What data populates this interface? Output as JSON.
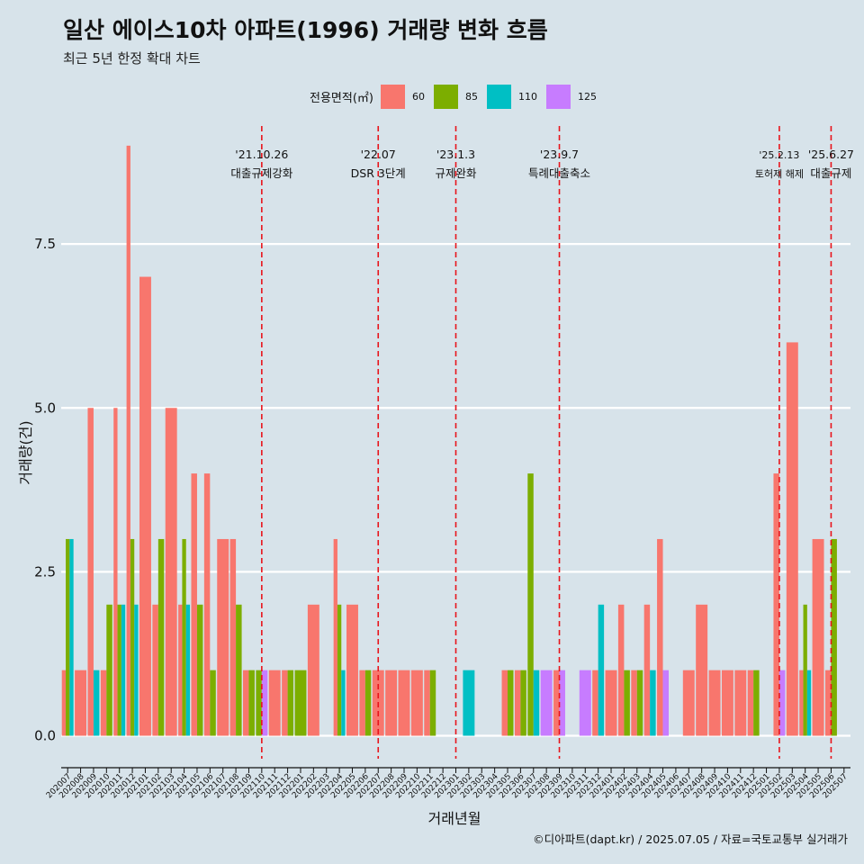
{
  "title": "일산 에이스10차 아파트(1996) 거래량 변화 흐름",
  "subtitle": "최근 5년 한정 확대 차트",
  "caption": "©디아파트(dapt.kr) / 2025.07.05 / 자료=국토교통부 실거래가",
  "legend": {
    "title": "전용면적(㎡)",
    "items": [
      {
        "label": "60",
        "color": "#f8766d"
      },
      {
        "label": "85",
        "color": "#7cae00"
      },
      {
        "label": "110",
        "color": "#00bfc4"
      },
      {
        "label": "125",
        "color": "#c77cff"
      }
    ]
  },
  "chart_data": {
    "type": "bar",
    "xlabel": "거래년월",
    "ylabel": "거래량(건)",
    "ylim": [
      -0.35,
      9.3
    ],
    "y_ticks": [
      "0.0",
      "2.5",
      "5.0",
      "7.5"
    ],
    "y_tick_values": [
      0,
      2.5,
      5,
      7.5
    ],
    "grid": true,
    "legend_position": "top",
    "categories": [
      "202007",
      "202008",
      "202009",
      "202010",
      "202011",
      "202012",
      "202101",
      "202102",
      "202103",
      "202104",
      "202105",
      "202106",
      "202107",
      "202108",
      "202109",
      "202110",
      "202111",
      "202112",
      "202201",
      "202202",
      "202203",
      "202204",
      "202205",
      "202206",
      "202207",
      "202208",
      "202209",
      "202210",
      "202211",
      "202212",
      "202301",
      "202302",
      "202303",
      "202304",
      "202305",
      "202306",
      "202307",
      "202308",
      "202309",
      "202310",
      "202311",
      "202312",
      "202401",
      "202402",
      "202403",
      "202404",
      "202405",
      "202406",
      "202407",
      "202408",
      "202409",
      "202410",
      "202411",
      "202412",
      "202501",
      "202502",
      "202503",
      "202504",
      "202505",
      "202506",
      "202507"
    ],
    "series_colors": {
      "60": "#f8766d",
      "85": "#7cae00",
      "110": "#00bfc4",
      "125": "#c77cff"
    },
    "bars": [
      {
        "month": "202007",
        "values": [
          {
            "s": "60",
            "v": 1
          },
          {
            "s": "85",
            "v": 3
          },
          {
            "s": "110",
            "v": 3
          }
        ]
      },
      {
        "month": "202008",
        "values": [
          {
            "s": "60",
            "v": 1
          }
        ]
      },
      {
        "month": "202009",
        "values": [
          {
            "s": "60",
            "v": 5
          },
          {
            "s": "110",
            "v": 1
          }
        ]
      },
      {
        "month": "202010",
        "values": [
          {
            "s": "60",
            "v": 1
          },
          {
            "s": "85",
            "v": 2
          }
        ]
      },
      {
        "month": "202011",
        "values": [
          {
            "s": "60",
            "v": 5
          },
          {
            "s": "85",
            "v": 2
          },
          {
            "s": "110",
            "v": 2
          }
        ]
      },
      {
        "month": "202012",
        "values": [
          {
            "s": "60",
            "v": 9
          },
          {
            "s": "85",
            "v": 3
          },
          {
            "s": "110",
            "v": 2
          }
        ]
      },
      {
        "month": "202101",
        "values": [
          {
            "s": "60",
            "v": 7
          }
        ]
      },
      {
        "month": "202102",
        "values": [
          {
            "s": "60",
            "v": 2
          },
          {
            "s": "85",
            "v": 3
          }
        ]
      },
      {
        "month": "202103",
        "values": [
          {
            "s": "60",
            "v": 5
          }
        ]
      },
      {
        "month": "202104",
        "values": [
          {
            "s": "60",
            "v": 2
          },
          {
            "s": "85",
            "v": 3
          },
          {
            "s": "110",
            "v": 2
          }
        ]
      },
      {
        "month": "202105",
        "values": [
          {
            "s": "60",
            "v": 4
          },
          {
            "s": "85",
            "v": 2
          }
        ]
      },
      {
        "month": "202106",
        "values": [
          {
            "s": "60",
            "v": 4
          },
          {
            "s": "85",
            "v": 1
          }
        ]
      },
      {
        "month": "202107",
        "values": [
          {
            "s": "60",
            "v": 3
          }
        ]
      },
      {
        "month": "202108",
        "values": [
          {
            "s": "60",
            "v": 3
          },
          {
            "s": "85",
            "v": 2
          }
        ]
      },
      {
        "month": "202109",
        "values": [
          {
            "s": "60",
            "v": 1
          },
          {
            "s": "85",
            "v": 1
          }
        ]
      },
      {
        "month": "202110",
        "values": [
          {
            "s": "85",
            "v": 1
          },
          {
            "s": "125",
            "v": 1
          }
        ]
      },
      {
        "month": "202111",
        "values": [
          {
            "s": "60",
            "v": 1
          }
        ]
      },
      {
        "month": "202112",
        "values": [
          {
            "s": "60",
            "v": 1
          },
          {
            "s": "85",
            "v": 1
          }
        ]
      },
      {
        "month": "202201",
        "values": [
          {
            "s": "85",
            "v": 1
          }
        ]
      },
      {
        "month": "202202",
        "values": [
          {
            "s": "60",
            "v": 2
          }
        ]
      },
      {
        "month": "202203",
        "values": []
      },
      {
        "month": "202204",
        "values": [
          {
            "s": "60",
            "v": 3
          },
          {
            "s": "85",
            "v": 2
          },
          {
            "s": "110",
            "v": 1
          }
        ]
      },
      {
        "month": "202205",
        "values": [
          {
            "s": "60",
            "v": 2
          }
        ]
      },
      {
        "month": "202206",
        "values": [
          {
            "s": "60",
            "v": 1
          },
          {
            "s": "85",
            "v": 1
          }
        ]
      },
      {
        "month": "202207",
        "values": [
          {
            "s": "60",
            "v": 1
          }
        ]
      },
      {
        "month": "202208",
        "values": [
          {
            "s": "60",
            "v": 1
          }
        ]
      },
      {
        "month": "202209",
        "values": [
          {
            "s": "60",
            "v": 1
          }
        ]
      },
      {
        "month": "202210",
        "values": [
          {
            "s": "60",
            "v": 1
          }
        ]
      },
      {
        "month": "202211",
        "values": [
          {
            "s": "60",
            "v": 1
          },
          {
            "s": "85",
            "v": 1
          }
        ]
      },
      {
        "month": "202212",
        "values": []
      },
      {
        "month": "202301",
        "values": []
      },
      {
        "month": "202302",
        "values": [
          {
            "s": "110",
            "v": 1
          }
        ]
      },
      {
        "month": "202303",
        "values": []
      },
      {
        "month": "202304",
        "values": []
      },
      {
        "month": "202305",
        "values": [
          {
            "s": "60",
            "v": 1
          },
          {
            "s": "85",
            "v": 1
          }
        ]
      },
      {
        "month": "202306",
        "values": [
          {
            "s": "60",
            "v": 1
          },
          {
            "s": "85",
            "v": 1
          }
        ]
      },
      {
        "month": "202307",
        "values": [
          {
            "s": "85",
            "v": 4
          },
          {
            "s": "110",
            "v": 1
          }
        ]
      },
      {
        "month": "202308",
        "values": [
          {
            "s": "125",
            "v": 1
          }
        ]
      },
      {
        "month": "202309",
        "values": [
          {
            "s": "60",
            "v": 1
          },
          {
            "s": "125",
            "v": 1
          }
        ]
      },
      {
        "month": "202310",
        "values": []
      },
      {
        "month": "202311",
        "values": [
          {
            "s": "125",
            "v": 1
          }
        ]
      },
      {
        "month": "202312",
        "values": [
          {
            "s": "60",
            "v": 1
          },
          {
            "s": "110",
            "v": 2
          }
        ]
      },
      {
        "month": "202401",
        "values": [
          {
            "s": "60",
            "v": 1
          }
        ]
      },
      {
        "month": "202402",
        "values": [
          {
            "s": "60",
            "v": 2
          },
          {
            "s": "85",
            "v": 1
          }
        ]
      },
      {
        "month": "202403",
        "values": [
          {
            "s": "60",
            "v": 1
          },
          {
            "s": "85",
            "v": 1
          }
        ]
      },
      {
        "month": "202404",
        "values": [
          {
            "s": "60",
            "v": 2
          },
          {
            "s": "110",
            "v": 1
          }
        ]
      },
      {
        "month": "202405",
        "values": [
          {
            "s": "60",
            "v": 3
          },
          {
            "s": "125",
            "v": 1
          }
        ]
      },
      {
        "month": "202406",
        "values": []
      },
      {
        "month": "202407",
        "values": [
          {
            "s": "60",
            "v": 1
          }
        ]
      },
      {
        "month": "202408",
        "values": [
          {
            "s": "60",
            "v": 2
          }
        ]
      },
      {
        "month": "202409",
        "values": [
          {
            "s": "60",
            "v": 1
          }
        ]
      },
      {
        "month": "202410",
        "values": [
          {
            "s": "60",
            "v": 1
          }
        ]
      },
      {
        "month": "202411",
        "values": [
          {
            "s": "60",
            "v": 1
          }
        ]
      },
      {
        "month": "202412",
        "values": [
          {
            "s": "60",
            "v": 1
          },
          {
            "s": "85",
            "v": 1
          }
        ]
      },
      {
        "month": "202501",
        "values": []
      },
      {
        "month": "202502",
        "values": [
          {
            "s": "60",
            "v": 4
          },
          {
            "s": "125",
            "v": 1
          }
        ]
      },
      {
        "month": "202503",
        "values": [
          {
            "s": "60",
            "v": 6
          }
        ]
      },
      {
        "month": "202504",
        "values": [
          {
            "s": "60",
            "v": 1
          },
          {
            "s": "85",
            "v": 2
          },
          {
            "s": "110",
            "v": 1
          }
        ]
      },
      {
        "month": "202505",
        "values": [
          {
            "s": "60",
            "v": 3
          }
        ]
      },
      {
        "month": "202506",
        "values": [
          {
            "s": "60",
            "v": 1
          },
          {
            "s": "85",
            "v": 3
          }
        ]
      },
      {
        "month": "202507",
        "values": []
      }
    ],
    "events": [
      {
        "month": "202110",
        "line1": "'21.10.26",
        "line2": "대출규제강화",
        "small": false
      },
      {
        "month": "202207",
        "line1": "'22.07",
        "line2": "DSR 3단계",
        "small": false
      },
      {
        "month": "202301",
        "line1": "'23.1.3",
        "line2": "규제완화",
        "small": false
      },
      {
        "month": "202309",
        "line1": "'23.9.7",
        "line2": "특례대출축소",
        "small": false
      },
      {
        "month": "202502",
        "line1": "'25.2.13",
        "line2": "토허제 해제",
        "small": true
      },
      {
        "month": "202506",
        "line1": "'25.6.27",
        "line2": "대출규제",
        "small": false
      }
    ]
  }
}
